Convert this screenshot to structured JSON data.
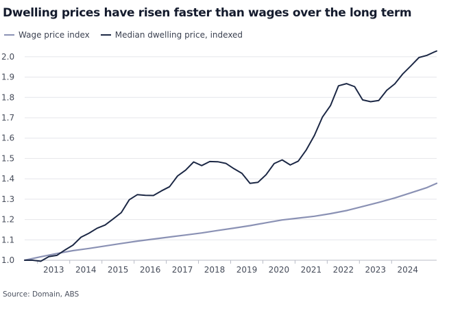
{
  "chart_data": {
    "type": "line",
    "title": "Dwelling prices have risen faster than wages over the long term",
    "source": "Source: Domain, ABS",
    "xlabel": "",
    "ylabel": "",
    "xlim": [
      2012.1,
      2024.9
    ],
    "ylim": [
      1.0,
      2.05
    ],
    "grid": true,
    "legend_position": "top-left",
    "yticks": [
      {
        "value": 1.0,
        "label": "1.0"
      },
      {
        "value": 1.1,
        "label": "1.1"
      },
      {
        "value": 1.2,
        "label": "1.2"
      },
      {
        "value": 1.3,
        "label": "1.3"
      },
      {
        "value": 1.4,
        "label": "1.4"
      },
      {
        "value": 1.5,
        "label": "1.5"
      },
      {
        "value": 1.6,
        "label": "1.6"
      },
      {
        "value": 1.7,
        "label": "1.7"
      },
      {
        "value": 1.8,
        "label": "1.8"
      },
      {
        "value": 1.9,
        "label": "1.9"
      },
      {
        "value": 2.0,
        "label": "2.0"
      }
    ],
    "xticks": [
      {
        "value": 2013,
        "label": "2013"
      },
      {
        "value": 2014,
        "label": "2014"
      },
      {
        "value": 2015,
        "label": "2015"
      },
      {
        "value": 2016,
        "label": "2016"
      },
      {
        "value": 2017,
        "label": "2017"
      },
      {
        "value": 2018,
        "label": "2018"
      },
      {
        "value": 2019,
        "label": "2019"
      },
      {
        "value": 2020,
        "label": "2020"
      },
      {
        "value": 2021,
        "label": "2021"
      },
      {
        "value": 2022,
        "label": "2022"
      },
      {
        "value": 2023,
        "label": "2023"
      },
      {
        "value": 2024,
        "label": "2024"
      }
    ],
    "series": [
      {
        "name": "Wage price index",
        "color": "#8a91b4",
        "x": [
          2012.1,
          2012.6,
          2013.1,
          2013.6,
          2014.1,
          2014.6,
          2015.1,
          2015.6,
          2016.1,
          2016.6,
          2017.1,
          2017.6,
          2018.1,
          2018.6,
          2019.1,
          2019.6,
          2020.1,
          2020.6,
          2021.1,
          2021.6,
          2022.1,
          2022.6,
          2023.1,
          2023.6,
          2024.1,
          2024.6,
          2024.9
        ],
        "values": [
          1.0,
          1.017,
          1.033,
          1.047,
          1.058,
          1.07,
          1.082,
          1.094,
          1.104,
          1.114,
          1.124,
          1.134,
          1.146,
          1.158,
          1.17,
          1.184,
          1.198,
          1.207,
          1.216,
          1.229,
          1.244,
          1.264,
          1.284,
          1.306,
          1.331,
          1.357,
          1.378
        ]
      },
      {
        "name": "Median dwelling price, indexed",
        "color": "#1b2744",
        "x": [
          2012.1,
          2012.35,
          2012.6,
          2012.85,
          2013.1,
          2013.35,
          2013.6,
          2013.85,
          2014.1,
          2014.35,
          2014.6,
          2014.85,
          2015.1,
          2015.35,
          2015.6,
          2015.85,
          2016.1,
          2016.35,
          2016.6,
          2016.85,
          2017.1,
          2017.35,
          2017.6,
          2017.85,
          2018.1,
          2018.35,
          2018.6,
          2018.85,
          2019.1,
          2019.35,
          2019.6,
          2019.85,
          2020.1,
          2020.35,
          2020.6,
          2020.85,
          2021.1,
          2021.35,
          2021.6,
          2021.85,
          2022.1,
          2022.35,
          2022.6,
          2022.85,
          2023.1,
          2023.35,
          2023.6,
          2023.85,
          2024.1,
          2024.35,
          2024.6,
          2024.85,
          2024.9
        ],
        "values": [
          1.0,
          1.0,
          0.995,
          1.018,
          1.024,
          1.05,
          1.074,
          1.113,
          1.133,
          1.157,
          1.173,
          1.203,
          1.234,
          1.297,
          1.322,
          1.319,
          1.318,
          1.341,
          1.361,
          1.414,
          1.443,
          1.483,
          1.465,
          1.485,
          1.484,
          1.476,
          1.45,
          1.427,
          1.378,
          1.383,
          1.42,
          1.475,
          1.493,
          1.468,
          1.487,
          1.542,
          1.613,
          1.703,
          1.76,
          1.857,
          1.868,
          1.853,
          1.788,
          1.779,
          1.785,
          1.835,
          1.867,
          1.916,
          1.955,
          1.996,
          2.007,
          2.025,
          2.028
        ]
      }
    ]
  }
}
